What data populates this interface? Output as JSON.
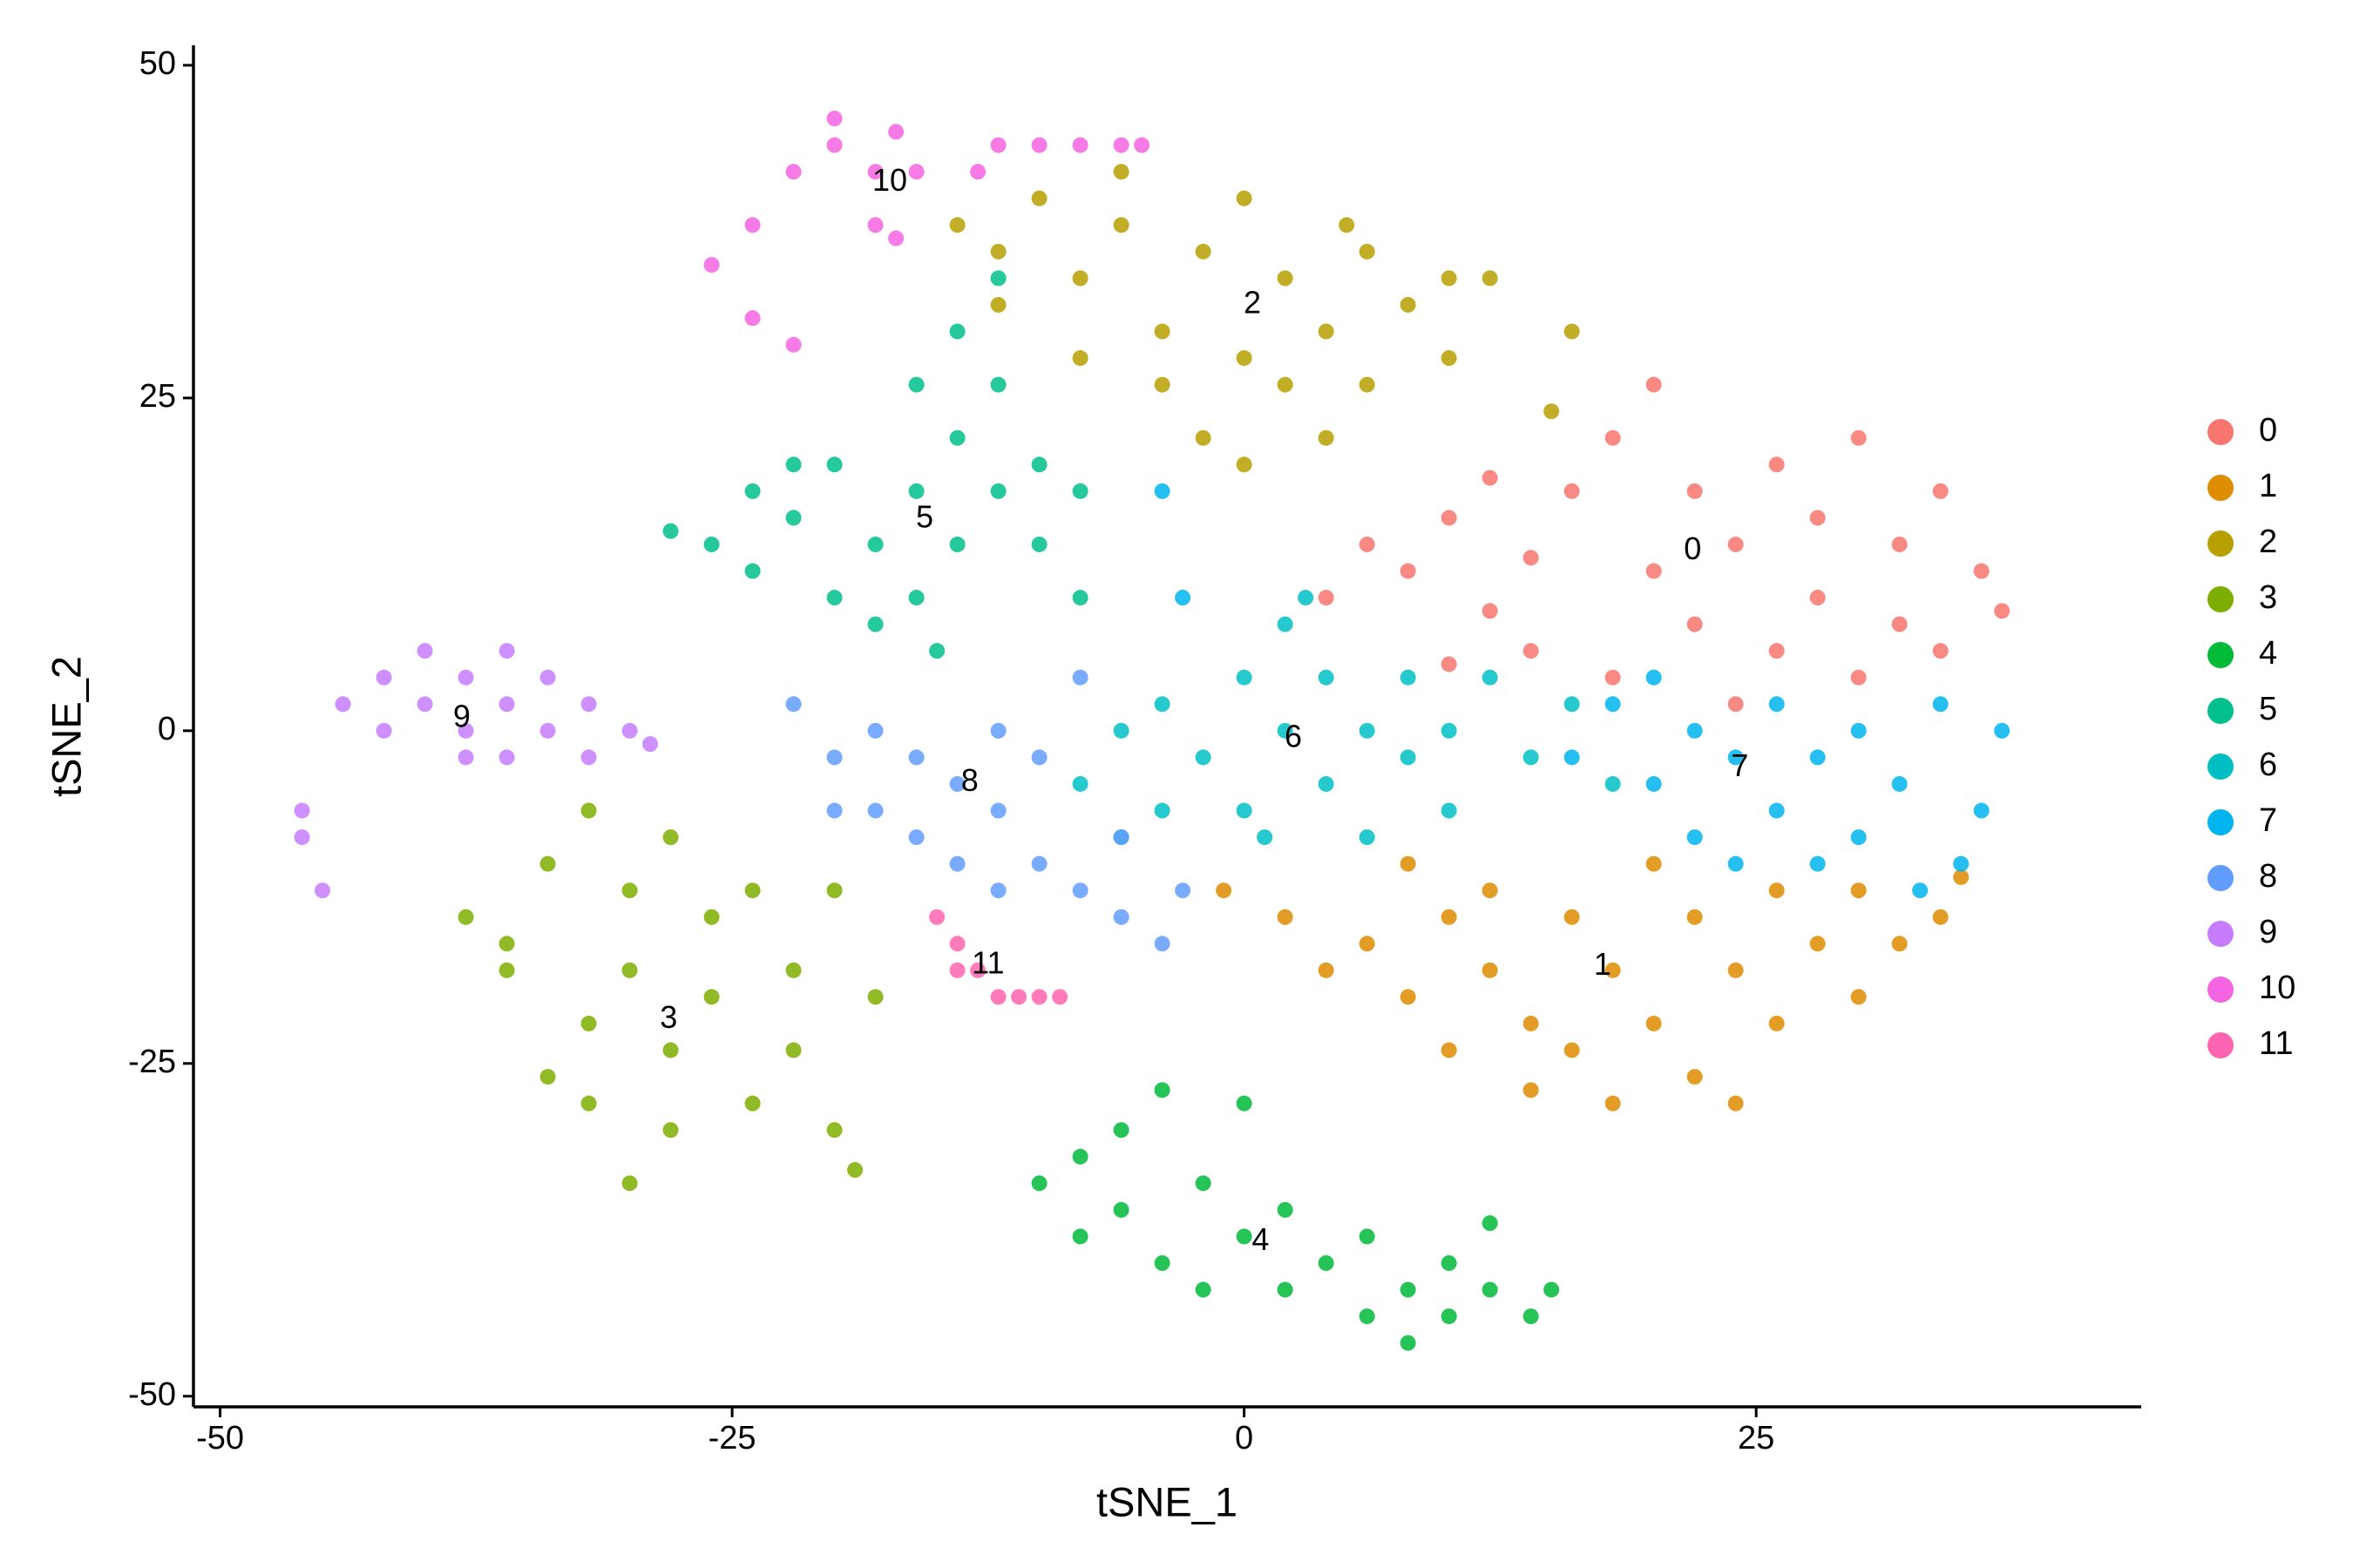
{
  "chart_data": {
    "type": "scatter",
    "xlabel": "tSNE_1",
    "ylabel": "tSNE_2",
    "xlim": [
      -51.3,
      43.8
    ],
    "ylim": [
      -50.8,
      51.5
    ],
    "xticks": [
      -50,
      -25,
      0,
      25
    ],
    "yticks": [
      -50,
      -25,
      0,
      25,
      50
    ],
    "grid": false,
    "legend": "right",
    "series": [
      {
        "name": "0",
        "color": "#F8766D",
        "x": [
          4,
          6,
          8,
          10,
          12,
          14,
          16,
          18,
          20,
          20,
          22,
          22,
          24,
          26,
          26,
          28,
          28,
          30,
          30,
          32,
          32,
          34,
          34,
          36,
          37,
          14,
          18,
          10,
          24,
          12
        ],
        "values": [
          10,
          14,
          12,
          16,
          9,
          13,
          18,
          22,
          26,
          12,
          8,
          18,
          14,
          20,
          6,
          16,
          10,
          22,
          4,
          14,
          8,
          18,
          6,
          12,
          9,
          6,
          4,
          5,
          2,
          19
        ]
      },
      {
        "name": "1",
        "color": "#DE8C00",
        "x": [
          -1,
          2,
          4,
          6,
          8,
          10,
          10,
          12,
          14,
          14,
          16,
          16,
          18,
          18,
          20,
          22,
          22,
          24,
          26,
          26,
          28,
          30,
          30,
          32,
          34,
          35,
          12,
          8,
          20,
          24
        ],
        "values": [
          -12,
          -14,
          -18,
          -16,
          -20,
          -14,
          -24,
          -18,
          -22,
          -27,
          -14,
          -24,
          -18,
          -28,
          -22,
          -26,
          -14,
          -18,
          -22,
          -12,
          -16,
          -20,
          -12,
          -16,
          -14,
          -11,
          -12,
          -10,
          -10,
          -28
        ]
      },
      {
        "name": "2",
        "color": "#B79F00",
        "x": [
          -14,
          -12,
          -10,
          -8,
          -6,
          -4,
          -2,
          0,
          2,
          0,
          2,
          4,
          4,
          6,
          6,
          8,
          10,
          12,
          -4,
          -2,
          -6,
          10,
          16,
          15,
          -12,
          0,
          5,
          -8
        ],
        "values": [
          38,
          36,
          40,
          34,
          38,
          30,
          36,
          40,
          34,
          28,
          26,
          30,
          22,
          36,
          26,
          32,
          28,
          34,
          26,
          22,
          42,
          34,
          30,
          24,
          32,
          20,
          38,
          28
        ]
      },
      {
        "name": "3",
        "color": "#7CAE00",
        "x": [
          -38,
          -36,
          -34,
          -32,
          -30,
          -34,
          -32,
          -30,
          -28,
          -28,
          -26,
          -26,
          -24,
          -22,
          -22,
          -20,
          -19,
          -18,
          -28,
          -24,
          -30,
          -32,
          -36,
          -20
        ],
        "values": [
          -14,
          -16,
          -10,
          -6,
          -12,
          -26,
          -22,
          -18,
          -24,
          -30,
          -20,
          -14,
          -28,
          -18,
          -24,
          -30,
          -33,
          -20,
          -8,
          -12,
          -34,
          -28,
          -18,
          -12
        ]
      },
      {
        "name": "4",
        "color": "#00BA38",
        "x": [
          -10,
          -8,
          -8,
          -6,
          -6,
          -4,
          -2,
          0,
          0,
          2,
          2,
          4,
          6,
          6,
          8,
          10,
          10,
          12,
          14,
          15,
          12,
          -4,
          -2,
          8
        ],
        "values": [
          -34,
          -32,
          -38,
          -30,
          -36,
          -40,
          -34,
          -28,
          -38,
          -42,
          -36,
          -40,
          -44,
          -38,
          -42,
          -44,
          -40,
          -42,
          -44,
          -42,
          -37,
          -27,
          -42,
          -46
        ]
      },
      {
        "name": "5",
        "color": "#00C08B",
        "x": [
          -28,
          -26,
          -24,
          -24,
          -22,
          -20,
          -20,
          -18,
          -16,
          -16,
          -14,
          -14,
          -12,
          -12,
          -10,
          -10,
          -8,
          -14,
          -12,
          -16,
          -18,
          -22,
          -8,
          -15
        ],
        "values": [
          15,
          14,
          12,
          18,
          16,
          10,
          20,
          14,
          18,
          10,
          22,
          14,
          26,
          18,
          20,
          14,
          18,
          30,
          34,
          26,
          8,
          20,
          10,
          6
        ]
      },
      {
        "name": "6",
        "color": "#00BFC4",
        "x": [
          -8,
          -6,
          -4,
          -4,
          -2,
          0,
          0,
          2,
          2,
          4,
          4,
          6,
          6,
          8,
          8,
          10,
          10,
          12,
          14,
          16,
          18,
          -6,
          1,
          3
        ],
        "values": [
          -4,
          0,
          2,
          -6,
          -2,
          4,
          -6,
          0,
          8,
          -4,
          4,
          0,
          -8,
          4,
          -2,
          0,
          -6,
          4,
          -2,
          2,
          -4,
          -8,
          -8,
          10
        ]
      },
      {
        "name": "7",
        "color": "#00B4F0",
        "x": [
          16,
          18,
          20,
          22,
          22,
          24,
          24,
          26,
          26,
          28,
          28,
          30,
          30,
          32,
          33,
          34,
          36,
          37,
          35,
          20,
          -4,
          -3
        ],
        "values": [
          -2,
          2,
          -4,
          0,
          -8,
          -2,
          -10,
          2,
          -6,
          -2,
          -10,
          0,
          -8,
          -4,
          -12,
          2,
          -6,
          0,
          -10,
          4,
          18,
          10
        ]
      },
      {
        "name": "8",
        "color": "#619CFF",
        "x": [
          -22,
          -20,
          -18,
          -18,
          -16,
          -16,
          -14,
          -12,
          -12,
          -10,
          -10,
          -8,
          -6,
          -4,
          -6,
          -14,
          -20,
          -8,
          -3,
          -12
        ],
        "values": [
          2,
          -2,
          0,
          -6,
          -2,
          -8,
          -4,
          -6,
          0,
          -10,
          -2,
          -12,
          -14,
          -16,
          -8,
          -10,
          -6,
          4,
          -12,
          -12
        ]
      },
      {
        "name": "9",
        "color": "#C77CFF",
        "x": [
          -44,
          -42,
          -42,
          -40,
          -40,
          -38,
          -38,
          -36,
          -36,
          -34,
          -34,
          -32,
          -32,
          -30,
          -29,
          -46,
          -46,
          -45,
          -38,
          -36
        ],
        "values": [
          2,
          4,
          0,
          6,
          2,
          4,
          0,
          2,
          -2,
          4,
          0,
          2,
          -2,
          0,
          -1,
          -6,
          -8,
          -12,
          -2,
          6
        ]
      },
      {
        "name": "10",
        "color": "#F564E3",
        "x": [
          -26,
          -24,
          -22,
          -20,
          -18,
          -18,
          -17,
          -16,
          -17,
          -12,
          -10,
          -8,
          -6,
          -5,
          -13,
          -24,
          -22,
          -20
        ],
        "values": [
          35,
          38,
          42,
          44,
          42,
          38,
          45,
          42,
          37,
          44,
          44,
          44,
          44,
          44,
          42,
          31,
          29,
          46
        ]
      },
      {
        "name": "11",
        "color": "#FF64B0",
        "x": [
          -15,
          -14,
          -13,
          -12,
          -11,
          -10,
          -9,
          -14
        ],
        "values": [
          -14,
          -16,
          -18,
          -20,
          -20,
          -20,
          -20,
          -18
        ]
      }
    ],
    "annotations": [
      {
        "text": "0",
        "x": 21.9,
        "y": 13.5
      },
      {
        "text": "1",
        "x": 17.5,
        "y": -17.7
      },
      {
        "text": "2",
        "x": 0.4,
        "y": 32
      },
      {
        "text": "3",
        "x": -28.1,
        "y": -21.7
      },
      {
        "text": "4",
        "x": 0.8,
        "y": -38.4
      },
      {
        "text": "5",
        "x": -15.6,
        "y": 15.9
      },
      {
        "text": "6",
        "x": 2.4,
        "y": -0.6
      },
      {
        "text": "7",
        "x": 24.2,
        "y": -2.8
      },
      {
        "text": "8",
        "x": -13.4,
        "y": -3.9
      },
      {
        "text": "9",
        "x": -38.2,
        "y": 0.9
      },
      {
        "text": "10",
        "x": -17.3,
        "y": 41.2
      },
      {
        "text": "11",
        "x": -12.5,
        "y": -17.6
      }
    ]
  }
}
